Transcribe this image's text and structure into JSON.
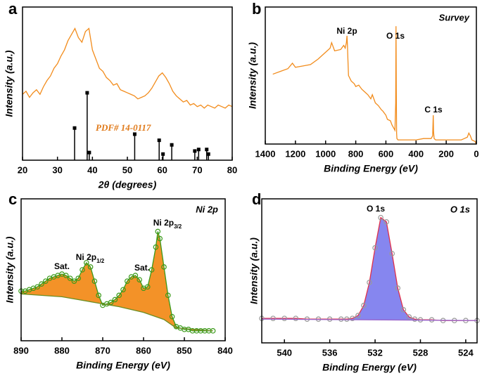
{
  "chart_data": [
    {
      "type": "line",
      "panel_label": "a",
      "x_label": "2θ (degrees)",
      "y_label": "Intensity (a.u.)",
      "xlim": [
        20,
        80
      ],
      "xticks": [
        20,
        30,
        40,
        50,
        60,
        70,
        80
      ],
      "ylim": [
        0,
        100
      ],
      "series": [
        {
          "color": "#f28c1c",
          "style": "line",
          "x": [
            20,
            21,
            22,
            23,
            24,
            25,
            26,
            27,
            28,
            29,
            30,
            31,
            32,
            33,
            34,
            35,
            36,
            37,
            38,
            39,
            40,
            41,
            42,
            43,
            44,
            45,
            46,
            47,
            48,
            49,
            50,
            51,
            52,
            53,
            54,
            55,
            56,
            57,
            58,
            59,
            60,
            61,
            62,
            63,
            64,
            65,
            66,
            67,
            68,
            69,
            70,
            71,
            72,
            73,
            74,
            75,
            76,
            77,
            78,
            79,
            80
          ],
          "values": [
            43,
            45,
            41,
            44,
            46,
            43,
            48,
            52,
            55,
            60,
            63,
            68,
            72,
            78,
            82,
            86,
            80,
            77,
            84,
            86,
            72,
            66,
            60,
            58,
            54,
            52,
            49,
            50,
            46,
            45,
            44,
            43,
            42,
            40,
            41,
            42,
            44,
            47,
            51,
            55,
            57,
            54,
            50,
            45,
            42,
            40,
            38,
            39,
            36,
            37,
            35,
            36,
            34,
            36,
            35,
            34,
            36,
            35,
            34,
            36,
            35
          ]
        },
        {
          "name": "PDF# 14-0117",
          "color": "#000000",
          "style": "stick",
          "x": [
            34.9,
            38.5,
            39.1,
            52.1,
            59.1,
            60.2,
            62.7,
            69.3,
            70.4,
            72.7,
            73.2
          ],
          "values": [
            21,
            44,
            5,
            17,
            13,
            4,
            10,
            6,
            7,
            7,
            4
          ]
        }
      ]
    },
    {
      "type": "line",
      "panel_label": "b",
      "title": "Survey",
      "x_label": "Binding Energy (eV)",
      "y_label": "Intensity (a.u.)",
      "xlim": [
        1400,
        0
      ],
      "xticks": [
        1400,
        1200,
        1000,
        800,
        600,
        400,
        200,
        0
      ],
      "ylim": [
        0,
        100
      ],
      "annotations": [
        {
          "text": "Ni 2p"
        },
        {
          "text": "O 1s"
        },
        {
          "text": "C 1s"
        }
      ],
      "series": [
        {
          "color": "#f28c1c",
          "style": "line",
          "x": [
            1350,
            1300,
            1250,
            1220,
            1200,
            1150,
            1100,
            1050,
            1000,
            970,
            960,
            940,
            900,
            880,
            870,
            862,
            858,
            855,
            852,
            848,
            830,
            810,
            800,
            780,
            760,
            740,
            720,
            700,
            690,
            670,
            650,
            630,
            620,
            600,
            590,
            570,
            560,
            550,
            540,
            535,
            533,
            531,
            529,
            527,
            520,
            500,
            450,
            400,
            350,
            300,
            290,
            286,
            284,
            280,
            270,
            250,
            200,
            150,
            100,
            80,
            60,
            50,
            40,
            30,
            10,
            0
          ],
          "values": [
            51,
            53,
            55,
            59,
            56,
            57,
            58,
            62,
            67,
            70,
            74,
            68,
            69,
            72,
            70,
            74,
            79,
            72,
            62,
            50,
            46,
            44,
            42,
            43,
            40,
            38,
            36,
            33,
            36,
            30,
            28,
            25,
            24,
            21,
            18,
            17,
            14,
            12,
            10,
            30,
            86,
            40,
            8,
            4,
            3,
            3,
            3,
            3,
            4,
            4,
            6,
            21,
            9,
            4,
            3,
            3,
            3,
            3,
            3,
            4,
            5,
            8,
            6,
            3,
            2,
            0
          ]
        }
      ]
    },
    {
      "type": "line",
      "panel_label": "c",
      "title": "Ni 2p",
      "x_label": "Binding Energy (eV)",
      "y_label": "Intensity (a.u.)",
      "xlim": [
        890,
        840
      ],
      "xticks": [
        890,
        880,
        870,
        860,
        850,
        840
      ],
      "ylim": [
        0,
        100
      ],
      "annotations": [
        {
          "text": "Sat."
        },
        {
          "text": "Ni 2p",
          "sub": "1/2"
        },
        {
          "text": "Sat."
        },
        {
          "text": "Ni 2p",
          "sub": "3/2"
        }
      ],
      "series": [
        {
          "style": "markers",
          "color": "#3a9a1a",
          "fill_color": "#f28c1c",
          "x": [
            890,
            889,
            888,
            887,
            886,
            885,
            884,
            883,
            882,
            881,
            880,
            879,
            878,
            877,
            876,
            875,
            874,
            873,
            872,
            871,
            870,
            869,
            868,
            867,
            866,
            865,
            864,
            863,
            862,
            861,
            860,
            859,
            858,
            857,
            856.5,
            856,
            855,
            854,
            853,
            852,
            851,
            850,
            849,
            848,
            847,
            846,
            845,
            844,
            843
          ],
          "values": [
            35,
            35,
            36,
            37,
            38,
            40,
            42,
            44,
            45,
            46,
            47,
            46,
            44,
            42,
            44,
            50,
            55,
            52,
            42,
            32,
            25,
            26,
            27,
            29,
            32,
            36,
            42,
            45,
            46,
            43,
            37,
            38,
            50,
            66,
            77,
            72,
            52,
            32,
            17,
            10,
            9,
            8,
            8,
            7,
            7,
            7,
            7,
            7,
            7
          ]
        },
        {
          "style": "line",
          "color": "#6b8e23",
          "x": [
            890,
            880,
            872,
            866,
            860,
            855,
            852,
            843
          ],
          "values": [
            33,
            31,
            27,
            24,
            20,
            15,
            9,
            7
          ]
        }
      ]
    },
    {
      "type": "line",
      "panel_label": "d",
      "title": "O 1s",
      "x_label": "Binding Energy (eV)",
      "y_label": "Intensity (a.u.)",
      "xlim": [
        542,
        523
      ],
      "xticks": [
        540,
        536,
        532,
        528,
        524
      ],
      "ylim": [
        0,
        100
      ],
      "annotations": [
        {
          "text": "O 1s"
        }
      ],
      "series": [
        {
          "style": "markers",
          "color": "#999999",
          "line_color": "#e0304a",
          "fill_color": "#8080ee",
          "x": [
            542,
            541,
            540,
            539,
            538,
            537,
            536,
            535,
            534.5,
            534,
            533.5,
            533,
            532.5,
            532,
            531.5,
            531,
            530.5,
            530,
            529.5,
            529,
            528.5,
            528,
            527,
            526,
            525,
            524,
            523
          ],
          "values": [
            17,
            17,
            17,
            17,
            16.5,
            16.5,
            16.5,
            16.5,
            16.5,
            17,
            19,
            26,
            42,
            66,
            87,
            84,
            62,
            38,
            23,
            18,
            16.5,
            16,
            16,
            15.5,
            15.5,
            15.5,
            15.5
          ]
        },
        {
          "style": "line",
          "color": "#9966cc",
          "x": [
            542,
            523
          ],
          "values": [
            16.5,
            15.5
          ]
        }
      ]
    }
  ]
}
